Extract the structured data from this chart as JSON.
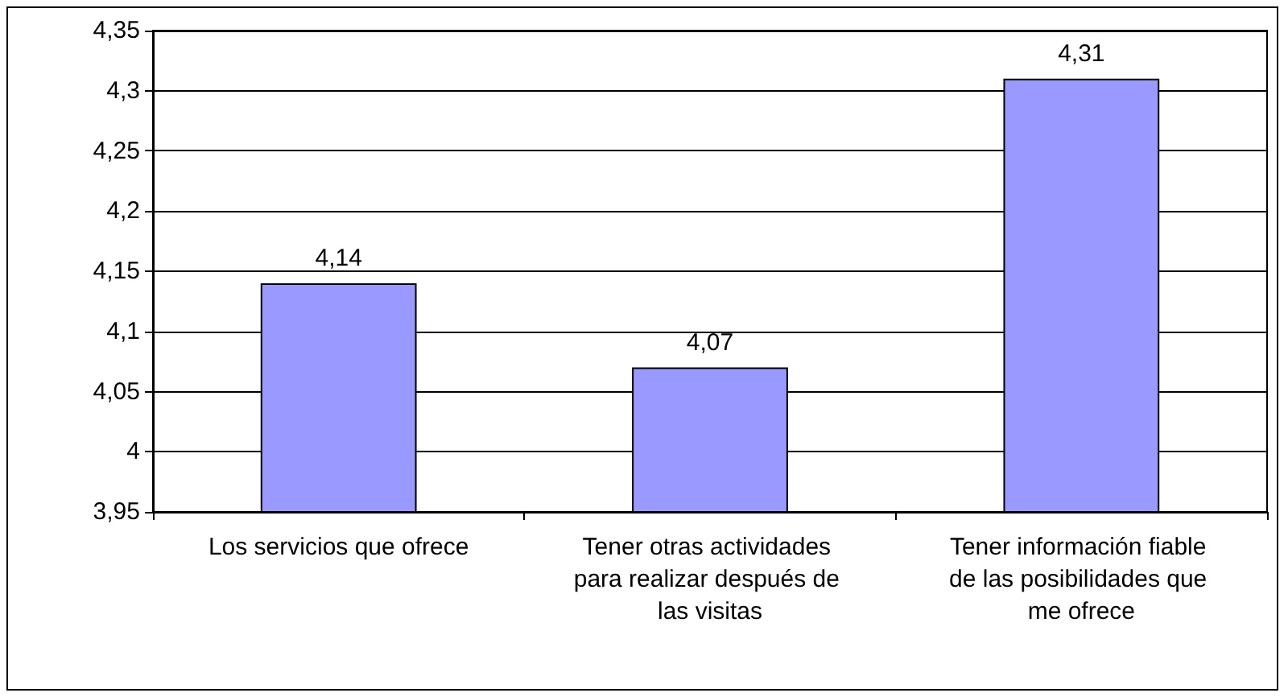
{
  "chart_data": {
    "type": "bar",
    "categories": [
      "Los servicios que ofrece",
      "Tener otras actividades para realizar después de las visitas",
      "Tener información fiable de las posibilidades que me ofrece"
    ],
    "values": [
      4.14,
      4.07,
      4.31
    ],
    "value_labels": [
      "4,14",
      "4,07",
      "4,31"
    ],
    "color": "#9999ff",
    "ylim": [
      3.95,
      4.35
    ],
    "yticks": [
      {
        "value": 3.95,
        "label": "3,95"
      },
      {
        "value": 4,
        "label": "4"
      },
      {
        "value": 4.05,
        "label": "4,05"
      },
      {
        "value": 4.1,
        "label": "4,1"
      },
      {
        "value": 4.15,
        "label": "4,15"
      },
      {
        "value": 4.2,
        "label": "4,2"
      },
      {
        "value": 4.25,
        "label": "4,25"
      },
      {
        "value": 4.3,
        "label": "4,3"
      },
      {
        "value": 4.35,
        "label": "4,35"
      }
    ],
    "grid": "y"
  }
}
